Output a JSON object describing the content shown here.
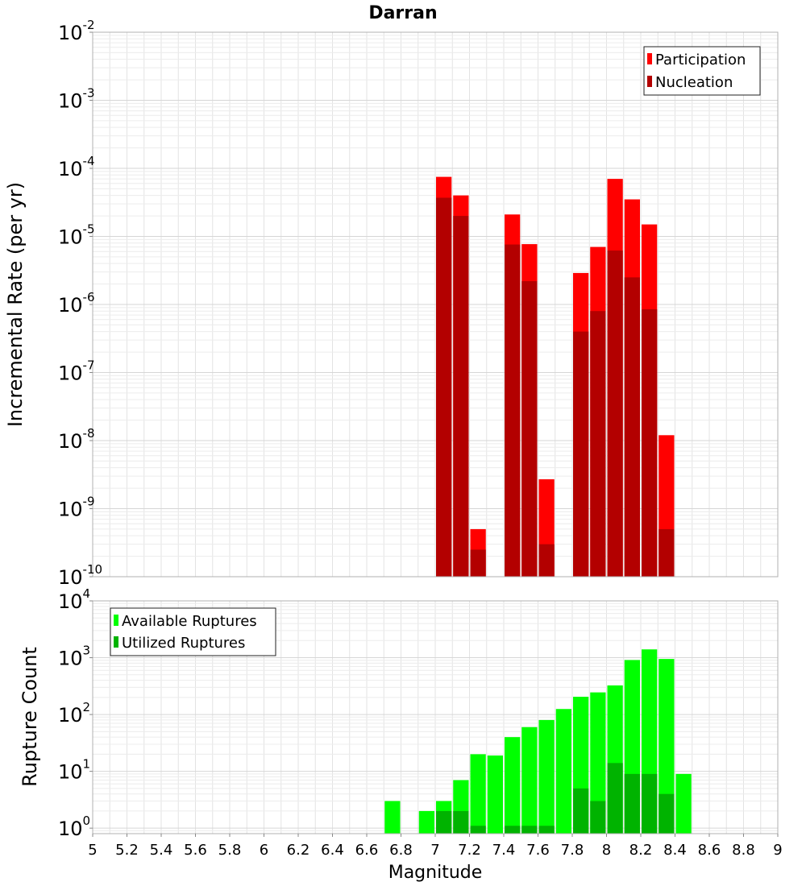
{
  "chart_data": [
    {
      "type": "bar",
      "title": "Darran",
      "ylabel": "Incremental Rate (per yr)",
      "xlabel": "",
      "y_scale": "log",
      "ylim": [
        1e-10,
        0.01
      ],
      "xlim": [
        5,
        9
      ],
      "bar_width": 0.1,
      "grid": true,
      "legend_position": "top-right",
      "y_ticks": [
        {
          "base": "10",
          "exp": "-10",
          "value": 1e-10
        },
        {
          "base": "10",
          "exp": "-9",
          "value": 1e-09
        },
        {
          "base": "10",
          "exp": "-8",
          "value": 1e-08
        },
        {
          "base": "10",
          "exp": "-7",
          "value": 1e-07
        },
        {
          "base": "10",
          "exp": "-6",
          "value": 1e-06
        },
        {
          "base": "10",
          "exp": "-5",
          "value": 1e-05
        },
        {
          "base": "10",
          "exp": "-4",
          "value": 0.0001
        },
        {
          "base": "10",
          "exp": "-3",
          "value": 0.001
        },
        {
          "base": "10",
          "exp": "-2",
          "value": 0.01
        }
      ],
      "series": [
        {
          "name": "Participation",
          "color": "#ff0000",
          "x": [
            7.05,
            7.15,
            7.25,
            7.45,
            7.55,
            7.65,
            7.85,
            7.95,
            8.05,
            8.15,
            8.25,
            8.35
          ],
          "values": [
            7.5e-05,
            4e-05,
            5e-10,
            2.1e-05,
            7.7e-06,
            2.7e-09,
            2.9e-06,
            7e-06,
            7e-05,
            3.5e-05,
            1.5e-05,
            1.2e-08
          ]
        },
        {
          "name": "Nucleation",
          "color": "#b30000",
          "x": [
            7.05,
            7.15,
            7.25,
            7.45,
            7.55,
            7.65,
            7.85,
            7.95,
            8.05,
            8.15,
            8.25,
            8.35
          ],
          "values": [
            3.7e-05,
            2e-05,
            2.5e-10,
            7.6e-06,
            2.2e-06,
            3e-10,
            4e-07,
            8e-07,
            6.2e-06,
            2.5e-06,
            8.5e-07,
            5e-10
          ]
        }
      ]
    },
    {
      "type": "bar",
      "ylabel": "Rupture Count",
      "xlabel": "Magnitude",
      "y_scale": "log",
      "ylim": [
        0.8,
        10000
      ],
      "xlim": [
        5,
        9
      ],
      "bar_width": 0.1,
      "grid": true,
      "legend_position": "top-left",
      "x_ticks": [
        "5",
        "5.2",
        "5.4",
        "5.6",
        "5.8",
        "6",
        "6.2",
        "6.4",
        "6.6",
        "6.8",
        "7",
        "7.2",
        "7.4",
        "7.6",
        "7.8",
        "8",
        "8.2",
        "8.4",
        "8.6",
        "8.8",
        "9"
      ],
      "y_ticks": [
        {
          "base": "10",
          "exp": "0",
          "value": 1
        },
        {
          "base": "10",
          "exp": "1",
          "value": 10
        },
        {
          "base": "10",
          "exp": "2",
          "value": 100
        },
        {
          "base": "10",
          "exp": "3",
          "value": 1000
        },
        {
          "base": "10",
          "exp": "4",
          "value": 10000
        }
      ],
      "series": [
        {
          "name": "Available Ruptures",
          "color": "#00ff00",
          "x": [
            6.75,
            6.95,
            7.05,
            7.15,
            7.25,
            7.35,
            7.45,
            7.55,
            7.65,
            7.75,
            7.85,
            7.95,
            8.05,
            8.15,
            8.25,
            8.35,
            8.45
          ],
          "values": [
            3,
            2,
            3,
            7,
            20,
            19,
            40,
            60,
            80,
            125,
            205,
            245,
            325,
            910,
            1400,
            950,
            9
          ]
        },
        {
          "name": "Utilized Ruptures",
          "color": "#00b300",
          "x": [
            7.05,
            7.15,
            7.25,
            7.45,
            7.55,
            7.65,
            7.85,
            7.95,
            8.05,
            8.15,
            8.25,
            8.35
          ],
          "values": [
            2,
            2,
            1.1,
            1.1,
            1.1,
            1.1,
            5,
            3,
            14,
            9,
            9,
            4
          ]
        }
      ]
    }
  ]
}
